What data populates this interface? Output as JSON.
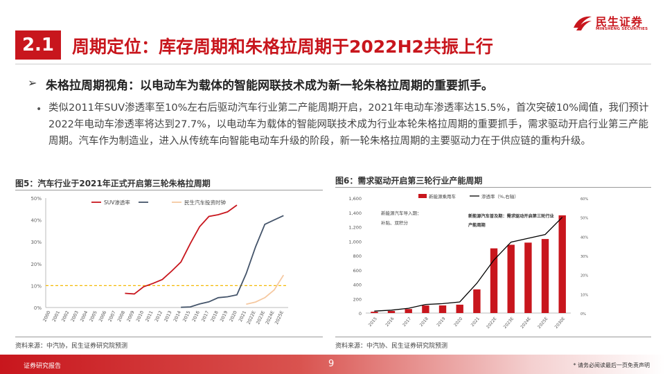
{
  "brand": {
    "cn": "民生证券",
    "en": "MINSHENG SECURITIES"
  },
  "section": {
    "number": "2.1",
    "title": "周期定位：库存周期和朱格拉周期于2022H2共振上行"
  },
  "lead": "朱格拉周期视角：以电动车为载体的智能网联技术成为新一轮朱格拉周期的重要抓手。",
  "body": "类似2011年SUV渗透率至10%左右后驱动汽车行业第二产能周期开启，2021年电动车渗透率达15.5%，首次突破10%阈值，我们预计2022年电动车渗透率将达到27.7%，以电动车为载体的智能网联技术成为行业本轮朱格拉周期的重要抓手，需求驱动开启行业第三产能周期。汽车作为制造业，进入从传统车向智能电动车升级的阶段，新一轮朱格拉周期的主要驱动力在于供应链的重构升级。",
  "fig5": {
    "title": "图5：汽车行业于2021年正式开启第三轮朱格拉周期",
    "source": "资料来源：中汽协，民生证券研究院预测"
  },
  "fig6": {
    "title": "图6：需求驱动开启第三轮行业产能周期",
    "source": "资料来源：中汽协、民生证券研究院预测"
  },
  "footer": {
    "left": "证券研究报告",
    "page": "9",
    "right": "* 请务必阅读最后一页免责声明"
  },
  "chart_data": [
    {
      "type": "line",
      "categories": [
        "2000",
        "2001",
        "2002",
        "2003",
        "2004",
        "2005",
        "2006",
        "2007",
        "2008",
        "2009",
        "2010",
        "2011",
        "2012",
        "2013",
        "2014",
        "2015",
        "2016",
        "2017",
        "2018",
        "2019",
        "2020",
        "2021",
        "2022E",
        "2023E",
        "2024E",
        "2025E"
      ],
      "yticks": [
        "0%",
        "10%",
        "20%",
        "30%",
        "40%",
        "50%"
      ],
      "ylim": [
        0,
        50
      ],
      "series": [
        {
          "name": "SUV渗透率",
          "color": "#c8161d",
          "dash": "",
          "values": [
            null,
            null,
            null,
            null,
            null,
            null,
            null,
            null,
            6.5,
            6.2,
            9.5,
            11.0,
            12.8,
            16.6,
            20.8,
            29.2,
            36.9,
            41.6,
            42.4,
            43.7,
            46.8,
            null,
            null,
            null,
            null,
            null
          ]
        },
        {
          "name": "",
          "color": "#44546a",
          "dash": "",
          "values": [
            null,
            null,
            null,
            null,
            null,
            null,
            null,
            null,
            null,
            null,
            null,
            null,
            null,
            null,
            0.1,
            0.3,
            1.6,
            2.6,
            4.5,
            4.9,
            5.8,
            15.5,
            27.7,
            38.0,
            40.0,
            42.0
          ]
        },
        {
          "name": "民生汽车投资时钟",
          "color": "#f5c8a0",
          "dash": "",
          "values": [
            null,
            null,
            null,
            null,
            null,
            null,
            null,
            null,
            null,
            null,
            null,
            null,
            null,
            null,
            null,
            null,
            null,
            null,
            null,
            null,
            null,
            1.5,
            2.5,
            4.5,
            8.0,
            14.8
          ]
        }
      ],
      "threshold": {
        "value": 10,
        "color": "#f5b800"
      },
      "legend_labels": [
        "SUV渗透率",
        "",
        "民生汽车投资时钟"
      ]
    },
    {
      "type": "bar",
      "categories": [
        "2015",
        "2016",
        "2017",
        "2018",
        "2019",
        "2020",
        "2021",
        "2022E",
        "2023E",
        "2024E",
        "2025E",
        "2030E"
      ],
      "series": [
        {
          "name": "新能源乘用车",
          "color": "#c8161d",
          "values": [
            18,
            30,
            56,
            105,
            106,
            117,
            330,
            900,
            950,
            980,
            1030,
            1360
          ]
        },
        {
          "name": "渗透率（%,右轴）",
          "color": "#000",
          "axis": "right",
          "values": [
            1,
            1.5,
            2.5,
            4.5,
            4.9,
            5.8,
            15.5,
            27.7,
            37,
            39,
            41,
            50
          ]
        }
      ],
      "ylim_left": [
        0,
        1600
      ],
      "yticks_left": [
        "0",
        "200",
        "400",
        "600",
        "800",
        "1,000",
        "1,200",
        "1,400",
        "1,600"
      ],
      "ylim_right": [
        0,
        60
      ],
      "yticks_right": [
        "0%",
        "10%",
        "20%",
        "30%",
        "40%",
        "50%",
        "60%"
      ],
      "annotations": [
        {
          "lines": [
            "新能源汽车导入期：",
            "补贴、双积分"
          ]
        },
        {
          "lines": [
            "新能源汽车普及期：需求驱动开启第三轮行业",
            "产能周期"
          ]
        }
      ]
    }
  ]
}
